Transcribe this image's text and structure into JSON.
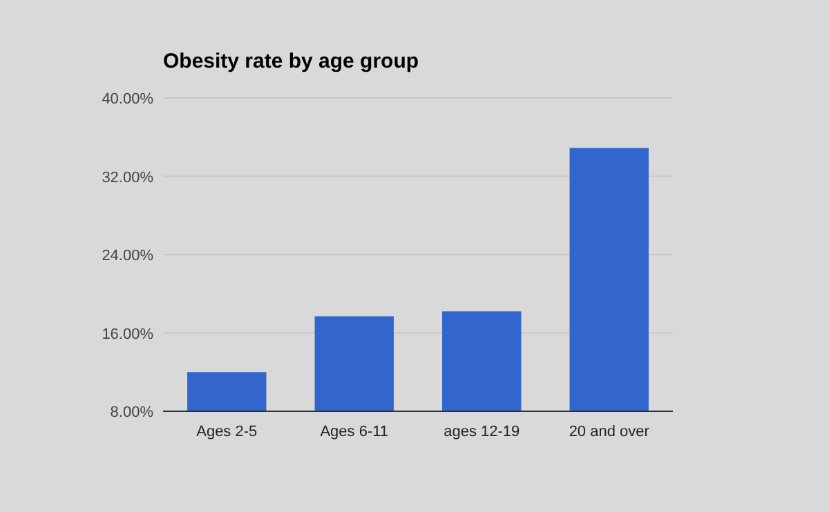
{
  "chart_data": {
    "type": "bar",
    "title": "Obesity rate by age group",
    "categories": [
      "Ages 2-5",
      "Ages 6-11",
      "ages 12-19",
      "20 and over"
    ],
    "values": [
      12.0,
      17.7,
      18.2,
      34.9
    ],
    "color": "#3366cc",
    "ylim": [
      8,
      40
    ],
    "yticks": [
      {
        "value": 8,
        "label": "8.00%"
      },
      {
        "value": 16,
        "label": "16.00%"
      },
      {
        "value": 24,
        "label": "24.00%"
      },
      {
        "value": 32,
        "label": "32.00%"
      },
      {
        "value": 40,
        "label": "40.00%"
      }
    ],
    "grid": "y"
  }
}
